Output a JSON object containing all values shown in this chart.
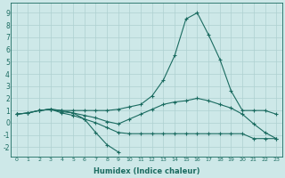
{
  "xlabel": "Humidex (Indice chaleur)",
  "bg_color": "#cde8e8",
  "grid_color": "#aed0d0",
  "line_color": "#1a6b60",
  "xlim": [
    -0.5,
    23.5
  ],
  "ylim": [
    -2.8,
    9.8
  ],
  "xticks": [
    0,
    1,
    2,
    3,
    4,
    5,
    6,
    7,
    8,
    9,
    10,
    11,
    12,
    13,
    14,
    15,
    16,
    17,
    18,
    19,
    20,
    21,
    22,
    23
  ],
  "yticks": [
    -2,
    -1,
    0,
    1,
    2,
    3,
    4,
    5,
    6,
    7,
    8,
    9
  ],
  "line1_x": [
    0,
    1,
    2,
    3,
    4,
    5,
    6,
    7,
    8,
    9,
    10,
    11,
    12,
    13,
    14,
    15,
    16,
    17,
    18,
    19,
    20,
    21,
    22,
    23
  ],
  "line1_y": [
    0.7,
    0.8,
    1.0,
    1.1,
    1.0,
    1.0,
    1.0,
    1.0,
    1.0,
    1.1,
    1.3,
    1.5,
    2.2,
    3.5,
    5.5,
    8.5,
    9.0,
    7.2,
    5.2,
    2.6,
    1.0,
    1.0,
    1.0,
    0.7
  ],
  "line2_x": [
    0,
    1,
    2,
    3,
    4,
    5,
    6,
    7,
    8,
    9,
    10,
    11,
    12,
    13,
    14,
    15,
    16,
    17,
    18,
    19,
    20,
    21,
    22,
    23
  ],
  "line2_y": [
    0.7,
    0.8,
    1.0,
    1.1,
    0.8,
    0.6,
    0.3,
    0.0,
    -0.4,
    -0.8,
    -0.9,
    -0.9,
    -0.9,
    -0.9,
    -0.9,
    -0.9,
    -0.9,
    -0.9,
    -0.9,
    -0.9,
    -0.9,
    -1.3,
    -1.3,
    -1.3
  ],
  "line3_x": [
    0,
    1,
    2,
    3,
    4,
    5,
    6,
    7,
    8,
    9,
    10,
    11,
    12,
    13,
    14,
    15,
    16,
    17,
    18,
    19,
    20,
    21,
    22,
    23
  ],
  "line3_y": [
    0.7,
    0.8,
    1.0,
    1.1,
    0.9,
    0.8,
    0.6,
    0.4,
    0.1,
    -0.1,
    0.3,
    0.7,
    1.1,
    1.5,
    1.7,
    1.8,
    2.0,
    1.8,
    1.5,
    1.2,
    0.7,
    -0.1,
    -0.8,
    -1.3
  ],
  "line4_x": [
    2,
    3,
    4,
    5,
    6,
    7,
    8,
    9
  ],
  "line4_y": [
    1.0,
    1.1,
    1.0,
    0.8,
    0.3,
    -0.8,
    -1.8,
    -2.4
  ]
}
